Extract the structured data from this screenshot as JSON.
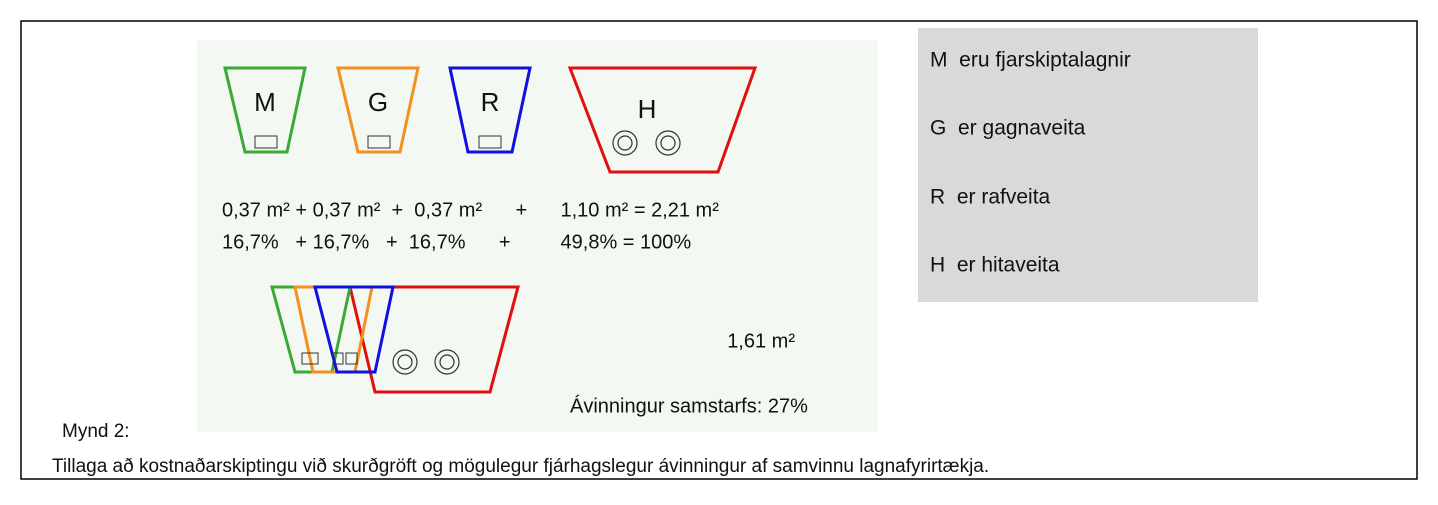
{
  "diagram": {
    "labels": {
      "m": "M",
      "g": "G",
      "r": "R",
      "h": "H"
    },
    "formula": [
      "0,37 m² + 0,37 m²  +  0,37 m²      +      1,10 m² = 2,21 m²",
      "16,7%   + 16,7%   +  16,7%      +         49,8% = 100%"
    ],
    "combined_area": "1,61 m²",
    "benefit": "Ávinningur samstarfs: 27%"
  },
  "legend": [
    "M  eru fjarskiptalagnir",
    "G  er gagnaveita",
    "R  er rafveita",
    "H  er hitaveita"
  ],
  "figure": {
    "label": "Mynd 2:",
    "caption": "Tillaga að kostnaðarskiptingu við skurðgröft og mögulegur fjárhagslegur ávinningur af samvinnu lagnafyrirtækja."
  }
}
